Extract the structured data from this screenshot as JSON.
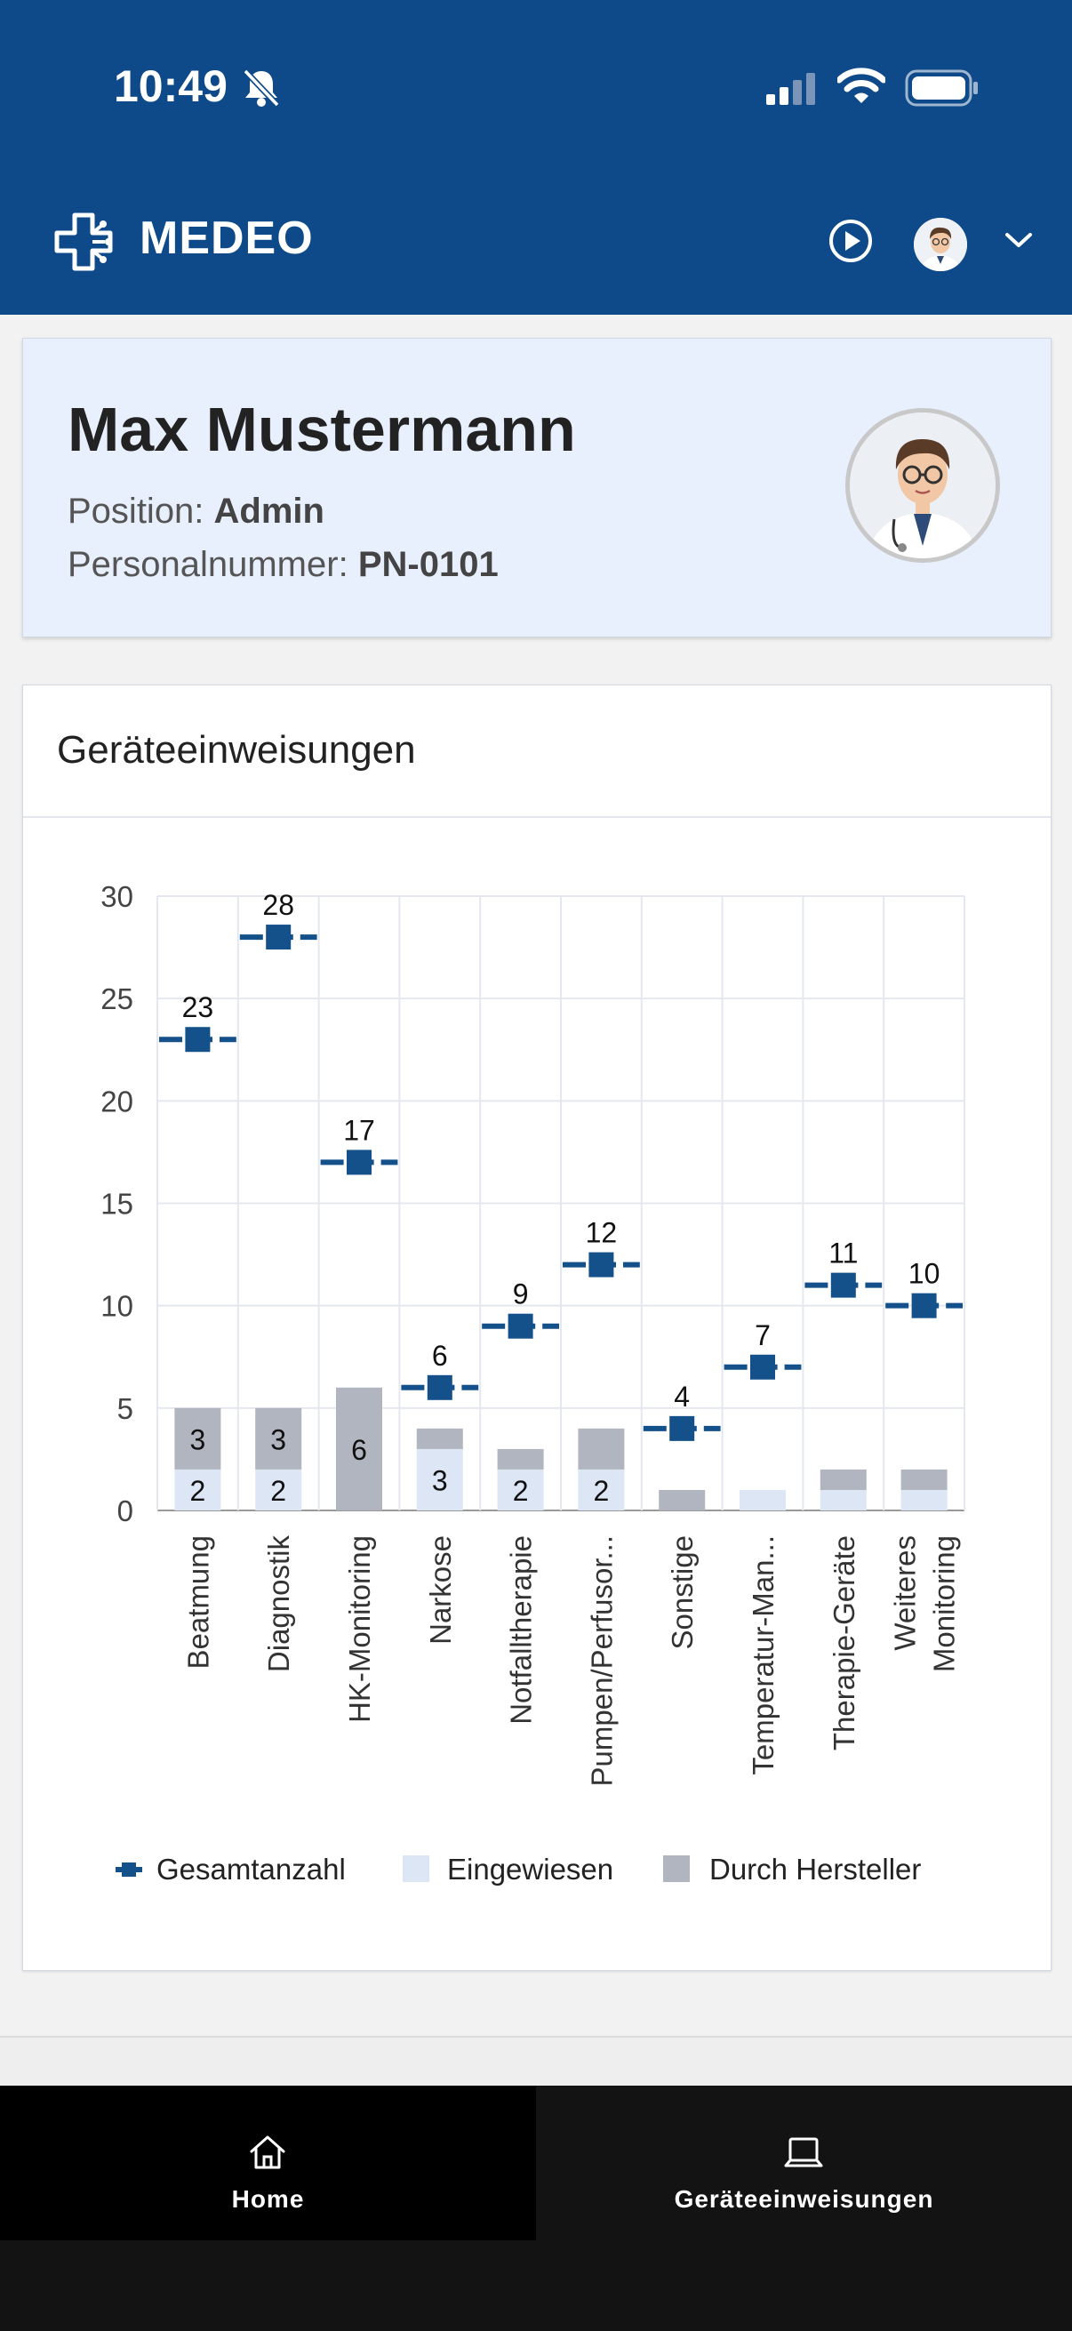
{
  "status_bar": {
    "time": "10:49"
  },
  "app": {
    "name": "MEDEO"
  },
  "profile": {
    "name": "Max Mustermann",
    "position_label": "Position:",
    "position_value": "Admin",
    "number_label": "Personalnummer:",
    "number_value": "PN-0101"
  },
  "chart_card": {
    "title": "Geräteeinweisungen"
  },
  "chart_data": {
    "type": "bar",
    "categories": [
      "Beatmung",
      "Diagnostik",
      "HK-Monitoring",
      "Narkose",
      "Notfalltherapie",
      "Pumpen/Perfusor...",
      "Sonstige",
      "Temperatur-Man...",
      "Therapie-Geräte",
      "Weiteres Monitoring"
    ],
    "series": [
      {
        "name": "Gesamtanzahl",
        "kind": "marker",
        "color": "#14508a",
        "values": [
          23,
          28,
          17,
          6,
          9,
          12,
          4,
          7,
          11,
          10
        ]
      },
      {
        "name": "Eingewiesen",
        "kind": "stacked-bar",
        "color": "#dce6f4",
        "values": [
          2,
          2,
          0,
          3,
          2,
          2,
          0,
          1,
          1,
          1
        ]
      },
      {
        "name": "Durch Hersteller",
        "kind": "stacked-bar",
        "color": "#b0b5bf",
        "values": [
          3,
          3,
          6,
          1,
          1,
          2,
          1,
          0,
          1,
          1
        ]
      }
    ],
    "ylim": [
      0,
      30
    ],
    "yticks": [
      0,
      5,
      10,
      15,
      20,
      25,
      30
    ],
    "grid": true,
    "legend_position": "bottom",
    "bar_labels_eingewiesen": [
      "2",
      "2",
      "",
      "3",
      "2",
      "2",
      "",
      "",
      "",
      ""
    ],
    "bar_labels_hersteller": [
      "3",
      "3",
      "6",
      "",
      "",
      "",
      "",
      "",
      "",
      ""
    ]
  },
  "nav": {
    "home_label": "Home",
    "devices_label": "Geräteeinweisungen"
  }
}
